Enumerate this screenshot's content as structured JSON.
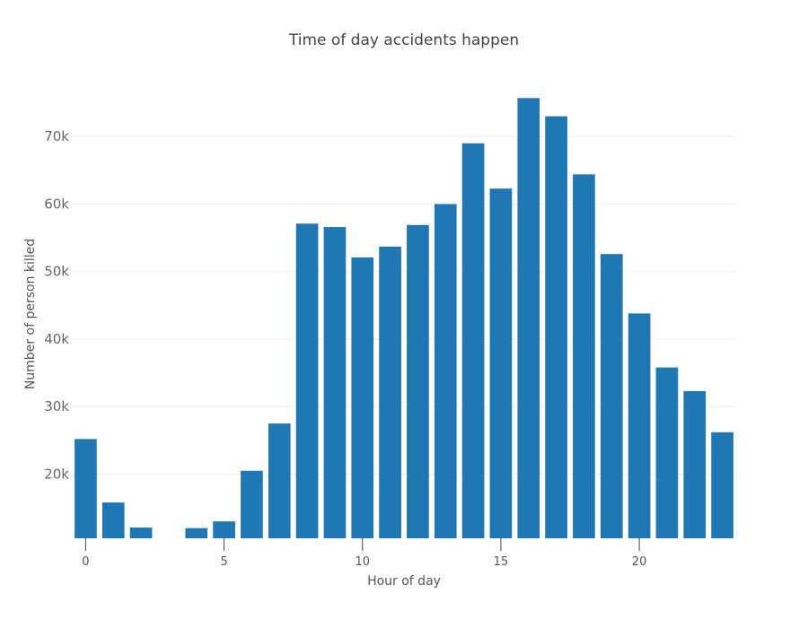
{
  "chart_data": {
    "type": "bar",
    "title": "Time of day accidents happen",
    "xlabel": "Hour of day",
    "ylabel": "Number of person killed",
    "x": [
      0,
      1,
      2,
      3,
      4,
      5,
      6,
      7,
      8,
      9,
      10,
      11,
      12,
      13,
      14,
      15,
      16,
      17,
      18,
      19,
      20,
      21,
      22,
      23
    ],
    "values": [
      25200,
      15800,
      12100,
      10000,
      12000,
      13000,
      20500,
      27500,
      57100,
      56600,
      52100,
      53700,
      56900,
      60000,
      69000,
      62300,
      75700,
      73000,
      64400,
      52600,
      43800,
      35800,
      32300,
      26200
    ],
    "ylim": [
      10500,
      78000
    ],
    "xlim": [
      -0.5,
      23.5
    ],
    "yticks": [
      20000,
      30000,
      40000,
      50000,
      60000,
      70000
    ],
    "ytick_labels": [
      "20k",
      "30k",
      "40k",
      "50k",
      "60k",
      "70k"
    ],
    "xticks": [
      0,
      5,
      10,
      15,
      20
    ],
    "xtick_labels": [
      "0",
      "5",
      "10",
      "15",
      "20"
    ],
    "bar_color": "#1f77b4",
    "grid": true,
    "legend": false
  }
}
